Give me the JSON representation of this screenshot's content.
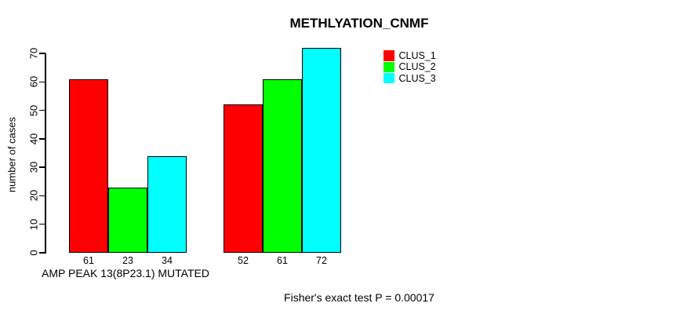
{
  "title": "METHLYATION_CNMF",
  "y_axis": {
    "label": "number of cases",
    "ticks": [
      "0",
      "10",
      "20",
      "30",
      "40",
      "50",
      "60",
      "70"
    ]
  },
  "x_axis": {
    "group_labels": [
      "AMP PEAK 13(8P23.1) MUTATED",
      ""
    ]
  },
  "legend": {
    "items": [
      {
        "label": "CLUS_1",
        "color": "#ff0000"
      },
      {
        "label": "CLUS_2",
        "color": "#00ff00"
      },
      {
        "label": "CLUS_3",
        "color": "#00ffff"
      }
    ]
  },
  "footer": "Fisher's exact test P = 0.00017",
  "colors": {
    "clus_1": "#ff0000",
    "clus_2": "#00ff00",
    "clus_3": "#00ffff",
    "axis": "#000000",
    "background": "#ffffff"
  },
  "chart_data": {
    "type": "bar",
    "title": "METHLYATION_CNMF",
    "xlabel": "AMP PEAK 13(8P23.1) MUTATED",
    "ylabel": "number of cases",
    "categories": [
      "AMP PEAK 13(8P23.1) MUTATED",
      ""
    ],
    "series": [
      {
        "name": "CLUS_1",
        "color": "#ff0000",
        "values": [
          61,
          52
        ]
      },
      {
        "name": "CLUS_2",
        "color": "#00ff00",
        "values": [
          23,
          61
        ]
      },
      {
        "name": "CLUS_3",
        "color": "#00ffff",
        "values": [
          34,
          72
        ]
      }
    ],
    "bar_value_labels": [
      [
        61,
        23,
        34
      ],
      [
        52,
        61,
        72
      ]
    ],
    "ylim": [
      0,
      70
    ],
    "yticks": [
      0,
      10,
      20,
      30,
      40,
      50,
      60,
      70
    ],
    "grid": false,
    "legend_position": "top-right",
    "annotation": "Fisher's exact test P = 0.00017"
  }
}
